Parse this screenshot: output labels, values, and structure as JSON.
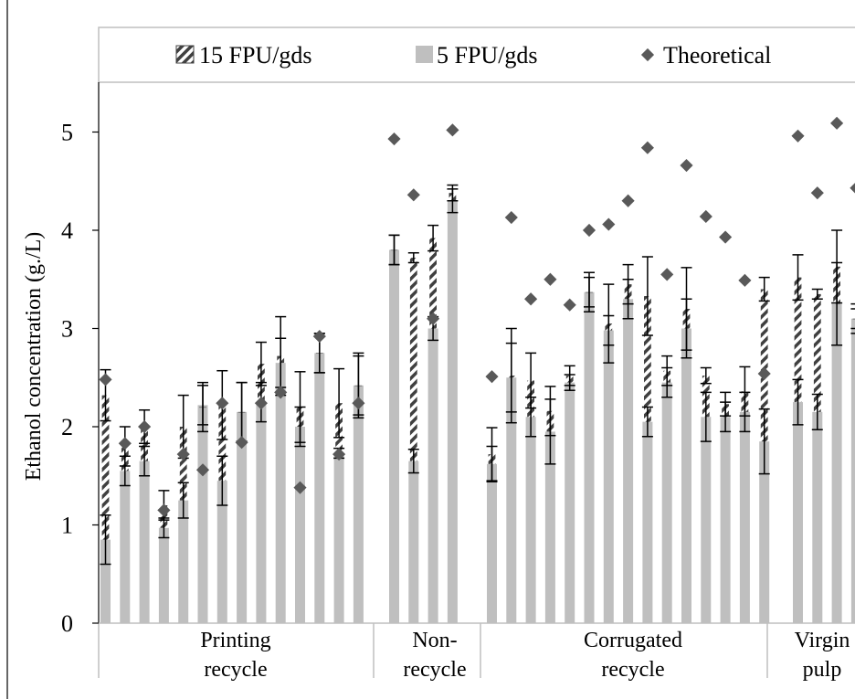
{
  "chart_data": {
    "type": "bar",
    "ylabel": "Ethanol concentration (g./L)",
    "ylim": [
      0,
      5.5
    ],
    "yticks": [
      0,
      1,
      2,
      3,
      4,
      5
    ],
    "legend": {
      "position": "top",
      "entries": [
        "15 FPU/gds",
        "5 FPU/gds",
        "Theoretical"
      ]
    },
    "colors": {
      "bar": "#bfbfbf",
      "hatch": "#404040",
      "marker": "#595959",
      "error": "#000000"
    },
    "groups": [
      {
        "label": "Printing\nrecycle",
        "label_lines": [
          "Printing",
          "recycle"
        ],
        "fifteen": [
          2.32,
          1.8,
          2.0,
          1.2,
          2.0,
          2.2,
          2.22,
          2.15,
          2.64,
          2.72,
          2.2,
          2.75,
          2.24,
          2.42
        ],
        "fifteen_err": [
          0.26,
          0.2,
          0.17,
          0.15,
          0.32,
          0.25,
          0.35,
          0.3,
          0.22,
          0.4,
          0.36,
          0.2,
          0.35,
          0.33
        ],
        "five": [
          0.85,
          1.55,
          1.65,
          0.97,
          1.25,
          2.22,
          1.45,
          2.15,
          2.25,
          2.65,
          2.0,
          2.75,
          1.73,
          2.42
        ],
        "five_err": [
          0.25,
          0.15,
          0.15,
          0.1,
          0.18,
          0.2,
          0.25,
          0.3,
          0.2,
          0.25,
          0.2,
          0.2,
          0.05,
          0.3
        ],
        "theoretical": [
          2.48,
          1.83,
          2.0,
          1.15,
          1.72,
          1.56,
          2.24,
          1.84,
          2.24,
          2.35,
          1.38,
          2.92,
          1.72,
          2.24
        ]
      },
      {
        "label": "Non-\nrecycle",
        "label_lines": [
          "Non-",
          "recycle"
        ],
        "fifteen": [
          3.8,
          3.72,
          3.92,
          4.38
        ],
        "fifteen_err": [
          0.15,
          0.05,
          0.13,
          0.08
        ],
        "five": [
          3.8,
          1.65,
          3.0,
          4.3
        ],
        "five_err": [
          0.15,
          0.12,
          0.12,
          0.12
        ],
        "theoretical": [
          4.93,
          4.36,
          3.1,
          5.02
        ]
      },
      {
        "label": "Corrugated\nrecycle",
        "label_lines": [
          "Corrugated",
          "recycle"
        ],
        "fifteen": [
          1.72,
          2.52,
          2.47,
          2.16,
          2.52,
          3.37,
          3.05,
          3.45,
          3.33,
          2.57,
          3.2,
          2.52,
          2.23,
          2.36,
          3.4
        ],
        "fifteen_err": [
          0.27,
          0.48,
          0.28,
          0.25,
          0.1,
          0.2,
          0.4,
          0.2,
          0.4,
          0.15,
          0.42,
          0.08,
          0.12,
          0.25,
          0.12
        ],
        "five": [
          1.62,
          2.5,
          2.1,
          1.95,
          2.45,
          3.37,
          2.98,
          3.3,
          2.05,
          2.45,
          3.0,
          2.1,
          2.1,
          2.15,
          1.85
        ],
        "five_err": [
          0.18,
          0.35,
          0.2,
          0.33,
          0.08,
          0.15,
          0.15,
          0.2,
          0.15,
          0.15,
          0.3,
          0.25,
          0.15,
          0.2,
          0.33
        ],
        "theoretical": [
          2.51,
          4.13,
          3.3,
          3.5,
          3.24,
          4.0,
          4.06,
          4.3,
          4.84,
          3.55,
          4.66,
          4.14,
          3.93,
          3.49,
          2.54
        ]
      },
      {
        "label": "Virgin\npulp",
        "label_lines": [
          "Virgin",
          "pulp"
        ],
        "fifteen": [
          3.52,
          3.35,
          3.63,
          3.1
        ],
        "fifteen_err": [
          0.23,
          0.05,
          0.37,
          0.1
        ],
        "five": [
          2.25,
          2.15,
          3.25,
          3.1
        ],
        "five_err": [
          0.23,
          0.18,
          0.42,
          0.15
        ],
        "theoretical": [
          4.96,
          4.38,
          5.09,
          4.43
        ]
      }
    ]
  }
}
